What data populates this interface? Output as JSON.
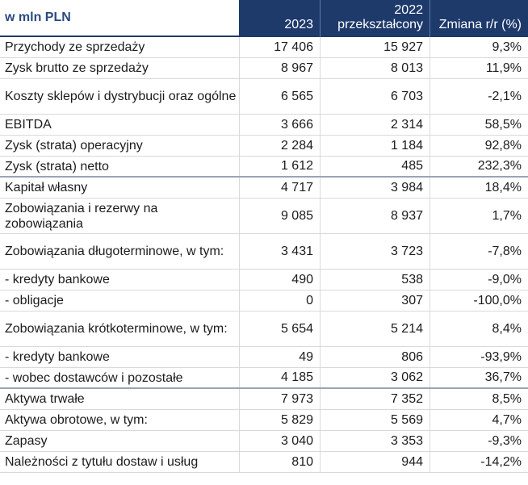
{
  "header": {
    "label": "w mln PLN",
    "col1": "2023",
    "col2_line1": "2022",
    "col2_line2": "przekształcony",
    "col3": "Zmiana r/r (%)"
  },
  "rows": [
    {
      "label": "Przychody ze sprzedaży",
      "v2023": "17 406",
      "v2022": "15 927",
      "change": "9,3%"
    },
    {
      "label": "Zysk brutto ze sprzedaży",
      "v2023": "8 967",
      "v2022": "8 013",
      "change": "11,9%"
    },
    {
      "label": "Koszty sklepów i dystrybucji oraz ogólne",
      "v2023": "6 565",
      "v2022": "6 703",
      "change": "-2,1%"
    },
    {
      "label": "EBITDA",
      "v2023": "3 666",
      "v2022": "2 314",
      "change": "58,5%"
    },
    {
      "label": "Zysk (strata) operacyjny",
      "v2023": "2 284",
      "v2022": "1 184",
      "change": "92,8%"
    },
    {
      "label": "Zysk (strata) netto",
      "v2023": "1 612",
      "v2022": "485",
      "change": "232,3%"
    },
    {
      "label": "Kapitał własny",
      "v2023": "4 717",
      "v2022": "3 984",
      "change": "18,4%"
    },
    {
      "label": "Zobowiązania i rezerwy na zobowiązania",
      "v2023": "9 085",
      "v2022": "8 937",
      "change": "1,7%"
    },
    {
      "label": "Zobowiązania długoterminowe, w tym:",
      "v2023": "3 431",
      "v2022": "3 723",
      "change": "-7,8%"
    },
    {
      "label": "- kredyty bankowe",
      "v2023": "490",
      "v2022": "538",
      "change": "-9,0%"
    },
    {
      "label": "- obligacje",
      "v2023": "0",
      "v2022": "307",
      "change": "-100,0%"
    },
    {
      "label": "Zobowiązania krótkoterminowe, w tym:",
      "v2023": "5 654",
      "v2022": "5 214",
      "change": "8,4%"
    },
    {
      "label": "- kredyty bankowe",
      "v2023": "49",
      "v2022": "806",
      "change": "-93,9%"
    },
    {
      "label": "- wobec dostawców i pozostałe",
      "v2023": "4 185",
      "v2022": "3 062",
      "change": "36,7%"
    },
    {
      "label": "Aktywa trwałe",
      "v2023": "7 973",
      "v2022": "7 352",
      "change": "8,5%"
    },
    {
      "label": "Aktywa obrotowe, w tym:",
      "v2023": "5 829",
      "v2022": "5 569",
      "change": "4,7%"
    },
    {
      "label": "Zapasy",
      "v2023": "3 040",
      "v2022": "3 353",
      "change": "-9,3%"
    },
    {
      "label": "Należności z tytułu dostaw i usług",
      "v2023": "810",
      "v2022": "944",
      "change": "-14,2%"
    }
  ]
}
